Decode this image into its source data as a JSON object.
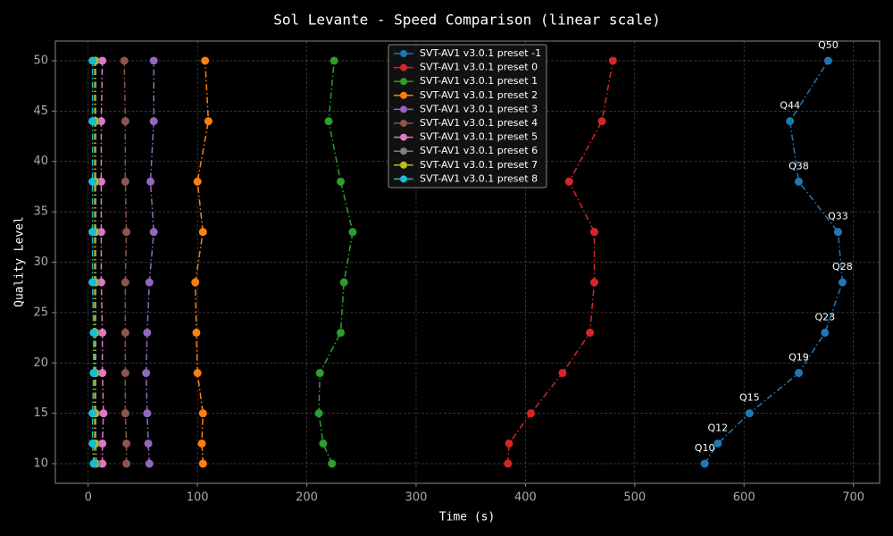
{
  "chart_data": {
    "type": "line",
    "title": "Sol Levante - Speed Comparison (linear scale)",
    "x_label": "Time (s)",
    "y_label": "Quality Level",
    "xlim": [
      -30,
      724
    ],
    "ylim": [
      8.05,
      51.95
    ],
    "xticks": [
      0,
      100,
      200,
      300,
      400,
      500,
      600,
      700
    ],
    "yticks": [
      10,
      15,
      20,
      25,
      30,
      35,
      40,
      45,
      50
    ],
    "grid": true,
    "legend": "upper center",
    "linestyle": "dashdot",
    "series": [
      {
        "name": "SVT-AV1 v3.0.1 preset -1",
        "color": "#1f77b4",
        "x": [
          564,
          576,
          605,
          650,
          674,
          690,
          686,
          650,
          642,
          677
        ],
        "values": [
          10,
          12,
          15,
          19,
          23,
          28,
          33,
          38,
          44,
          50
        ]
      },
      {
        "name": "SVT-AV1 v3.0.1 preset 0",
        "color": "#d62728",
        "x": [
          384,
          385,
          405,
          434,
          459,
          463,
          463,
          440,
          470,
          480
        ],
        "values": [
          10,
          12,
          15,
          19,
          23,
          28,
          33,
          38,
          44,
          50
        ]
      },
      {
        "name": "SVT-AV1 v3.0.1 preset 1",
        "color": "#2ca02c",
        "x": [
          223,
          215,
          211,
          212,
          231,
          234,
          242,
          231,
          220,
          225
        ],
        "values": [
          10,
          12,
          15,
          19,
          23,
          28,
          33,
          38,
          44,
          50
        ]
      },
      {
        "name": "SVT-AV1 v3.0.1 preset 2",
        "color": "#ff7f0e",
        "x": [
          105,
          104,
          105,
          100,
          99,
          98,
          105,
          100,
          110,
          107
        ],
        "values": [
          10,
          12,
          15,
          19,
          23,
          28,
          33,
          38,
          44,
          50
        ]
      },
      {
        "name": "SVT-AV1 v3.0.1 preset 3",
        "color": "#9467bd",
        "x": [
          56,
          55,
          54,
          53,
          54,
          56,
          60,
          57,
          60,
          60
        ],
        "values": [
          10,
          12,
          15,
          19,
          23,
          28,
          33,
          38,
          44,
          50
        ]
      },
      {
        "name": "SVT-AV1 v3.0.1 preset 4",
        "color": "#8c564b",
        "x": [
          35,
          35,
          34,
          34,
          34,
          34,
          35,
          34,
          34,
          33
        ],
        "values": [
          10,
          12,
          15,
          19,
          23,
          28,
          33,
          38,
          44,
          50
        ]
      },
      {
        "name": "SVT-AV1 v3.0.1 preset 5",
        "color": "#e377c2",
        "x": [
          13,
          13,
          14,
          13,
          13,
          12,
          12,
          12,
          12,
          13
        ],
        "values": [
          10,
          12,
          15,
          19,
          23,
          28,
          33,
          38,
          44,
          50
        ]
      },
      {
        "name": "SVT-AV1 v3.0.1 preset 6",
        "color": "#7f7f7f",
        "x": [
          8,
          7,
          7,
          7,
          7,
          7,
          7,
          7,
          7,
          7
        ],
        "values": [
          10,
          12,
          15,
          19,
          23,
          28,
          33,
          38,
          44,
          50
        ]
      },
      {
        "name": "SVT-AV1 v3.0.1 preset 7",
        "color": "#bcbd22",
        "x": [
          6,
          6,
          6,
          6,
          6,
          6,
          6,
          6,
          6,
          6
        ],
        "values": [
          10,
          12,
          15,
          19,
          23,
          28,
          33,
          38,
          44,
          50
        ]
      },
      {
        "name": "SVT-AV1 v3.0.1 preset 8",
        "color": "#17becf",
        "x": [
          5,
          4,
          4,
          5,
          5,
          4,
          4,
          4,
          4,
          4
        ],
        "values": [
          10,
          12,
          15,
          19,
          23,
          28,
          33,
          38,
          44,
          50
        ]
      }
    ],
    "annotations": [
      {
        "text": "Q10",
        "x": 564,
        "y": 10
      },
      {
        "text": "Q12",
        "x": 576,
        "y": 12
      },
      {
        "text": "Q15",
        "x": 605,
        "y": 15
      },
      {
        "text": "Q19",
        "x": 650,
        "y": 19
      },
      {
        "text": "Q23",
        "x": 674,
        "y": 23
      },
      {
        "text": "Q28",
        "x": 690,
        "y": 28
      },
      {
        "text": "Q33",
        "x": 686,
        "y": 33
      },
      {
        "text": "Q38",
        "x": 650,
        "y": 38
      },
      {
        "text": "Q44",
        "x": 642,
        "y": 44
      },
      {
        "text": "Q50",
        "x": 677,
        "y": 50
      }
    ]
  }
}
